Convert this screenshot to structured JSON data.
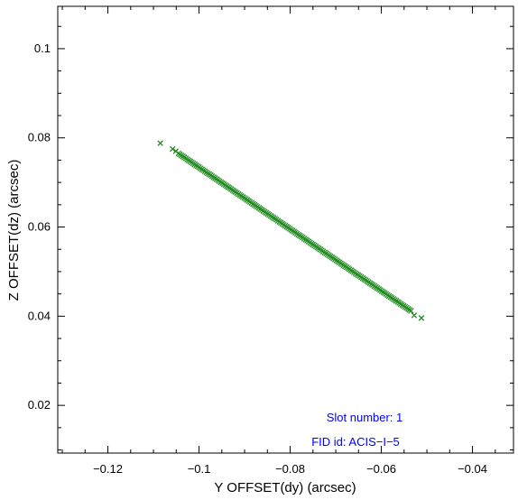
{
  "chart_data": {
    "type": "scatter",
    "xlabel": "Y OFFSET(dy) (arcsec)",
    "ylabel": "Z OFFSET(dz) (arcsec)",
    "xlim": [
      -0.131,
      -0.031
    ],
    "ylim": [
      0.0093,
      0.1095
    ],
    "xticks": [
      -0.12,
      -0.1,
      -0.08,
      -0.06,
      -0.04
    ],
    "yticks": [
      0.02,
      0.04,
      0.06,
      0.08,
      0.1
    ],
    "xtick_labels": [
      "−0.12",
      "−0.1",
      "−0.08",
      "−0.06",
      "−0.04"
    ],
    "ytick_labels": [
      "0.02",
      "0.04",
      "0.06",
      "0.08",
      "0.1"
    ],
    "marker": "x",
    "marker_color": "#228b22",
    "grid": false,
    "series": [
      {
        "line_from": [
          -0.1045,
          0.0765
        ],
        "line_to": [
          -0.0535,
          0.0412
        ],
        "n_points_on_line": 160,
        "outliers": [
          {
            "x": -0.1085,
            "y": 0.0788
          },
          {
            "x": -0.1058,
            "y": 0.0775
          },
          {
            "x": -0.1051,
            "y": 0.077
          },
          {
            "x": -0.0528,
            "y": 0.0402
          },
          {
            "x": -0.0512,
            "y": 0.0396
          }
        ]
      }
    ],
    "annotations": [
      {
        "text": "Slot number: 1",
        "color": "#0000ff"
      },
      {
        "text": "FID id: ACIS−I−5",
        "color": "#0000ff"
      }
    ]
  }
}
